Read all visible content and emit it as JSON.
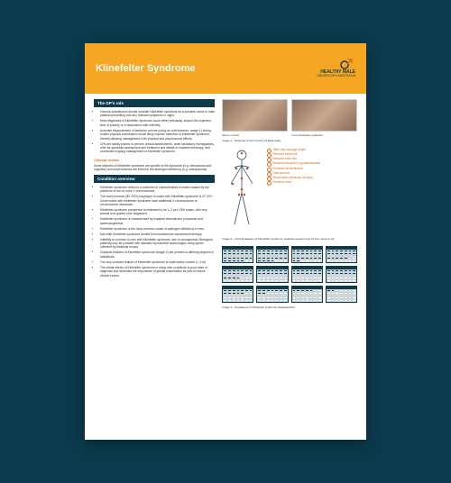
{
  "page": {
    "background_color": "#0b3b4d",
    "sheet_bg": "#ffffff",
    "accent_orange": "#f5a623",
    "brand_orange": "#d86b1f",
    "brand_navy": "#0b3b4d"
  },
  "header": {
    "title": "Klinefelter Syndrome",
    "logo_line1": "HEALTHY MALE",
    "logo_line2": "ANDROLOGY AUSTRALIA"
  },
  "sections": {
    "gp_role": {
      "heading": "The GP's role",
      "bullets": [
        "General practitioners should consider Klinefelter syndrome as a possible cause in male patients presenting with any relevant symptoms or signs.",
        "Most diagnoses of Klinefelter syndrome occur either prenatally, around the expected time of puberty or in association with infertility.",
        "Accurate measurement of testicular volume (using an orchidometer, Image 1) during routine physical examination would likely improve detection of Klinefelter syndrome, thereby allowing management of its physical and psychosocial effects.",
        "GPs are ideally placed to perform clinical assessments, order laboratory investigations, refer for specialist assessment and treatment and initiate or implement therapy, and coordinate ongoing management of Klinefelter syndrome."
      ]
    },
    "clinical_review": {
      "heading": "Clinical review",
      "para": "Some features of Klinefelter syndrome are specific to the syndrome (e.g. behavioural and cognitive) and some features are linked to the androgen deficiency (e.g. osteoporosis)."
    },
    "condition_overview": {
      "heading": "Condition overview",
      "bullets": [
        "Klinefelter syndrome refers to a collection of characteristics in males caused by the presence of two or more X chromosomes.",
        "The most common (80–90%) karyotype of males with Klinefelter syndrome is 47,XXY. Some males with Klinefelter syndrome have additional X chromosomes or chromosomal mosaicism.",
        "Klinefelter syndrome prevalence is estimated to be 1–2 per 1000 males, with only around one-quarter ever diagnosed.",
        "Klinefelter syndrome is characterised by impaired testosterone production and spermatogenesis.",
        "Klinefelter syndrome is the most common cause of androgen deficiency in men.",
        "Men with Klinefelter syndrome benefit from testosterone replacement therapy.",
        "Infertility is common in men with Klinefelter syndrome, due to azoospermia. Biological paternity may be possible with assisted reproductive technologies using sperm collected by testicular biopsy.",
        "Classical features of Klinefelter syndrome (Image 2) are present to differing degrees in individuals.",
        "The only constant feature of Klinefelter syndrome is small testes volume (< 4 ml).",
        "The subtle effects of Klinefelter syndrome in many men contribute to poor rates of diagnosis and illustrates the importance of genital examination as part of routine clinical exams."
      ]
    }
  },
  "right": {
    "photo_caption_left": "20 mL normal",
    "photo_caption_right": "4 mL Klinefelter syndrome",
    "image1_caption": "Image 1 – Example of 20 ml and 4 ml adult testis",
    "features": [
      "Taller than average height",
      "Reduced facial hair",
      "Reduced body hair",
      "Breast development (gynaecomastia)",
      "Feminine fat distribution",
      "Osteoporosis",
      "Small testes (testicular atrophy)",
      "Feminine wrist"
    ],
    "image2_caption": "Image 2 – Clinical features of Klinefelter syndrome. Features present may be few, some or all.",
    "image3_caption": "Image 3 – Prevalence of Klinefelter syndrome characteristics",
    "calendar": {
      "cols": 4,
      "rows": 3,
      "cell_cols": 7,
      "cell_rows": 5,
      "fill_fractions": [
        0.95,
        0.9,
        0.85,
        0.75,
        0.7,
        0.6,
        0.55,
        0.45,
        0.35,
        0.25,
        0.15,
        0.05
      ],
      "fill_color": "#0b3b4d",
      "grid_color": "#cfd6d9"
    }
  }
}
